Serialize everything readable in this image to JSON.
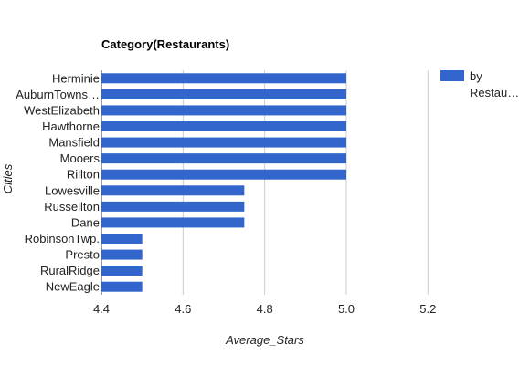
{
  "chart_data": {
    "type": "bar",
    "orientation": "horizontal",
    "title": "Category(Restaurants)",
    "xlabel": "Average_Stars",
    "ylabel": "Cities",
    "xlim": [
      4.4,
      5.3
    ],
    "xticks": [
      "4.4",
      "4.6",
      "4.8",
      "5.0",
      "5.2"
    ],
    "xtick_values": [
      4.4,
      4.6,
      4.8,
      5.0,
      5.2
    ],
    "grid": true,
    "legend_position": "right",
    "categories": [
      "Herminie",
      "AuburnTowns…",
      "WestElizabeth",
      "Hawthorne",
      "Mansfield",
      "Mooers",
      "Rillton",
      "Lowesville",
      "Russellton",
      "Dane",
      "RobinsonTwp.",
      "Presto",
      "RuralRidge",
      "NewEagle"
    ],
    "series": [
      {
        "name": "by Restau…",
        "legend_lines": [
          "by",
          "Restau…"
        ],
        "color": "#3366cc",
        "values": [
          5.0,
          5.0,
          5.0,
          5.0,
          5.0,
          5.0,
          5.0,
          4.75,
          4.75,
          4.75,
          4.5,
          4.5,
          4.5,
          4.5
        ]
      }
    ]
  }
}
